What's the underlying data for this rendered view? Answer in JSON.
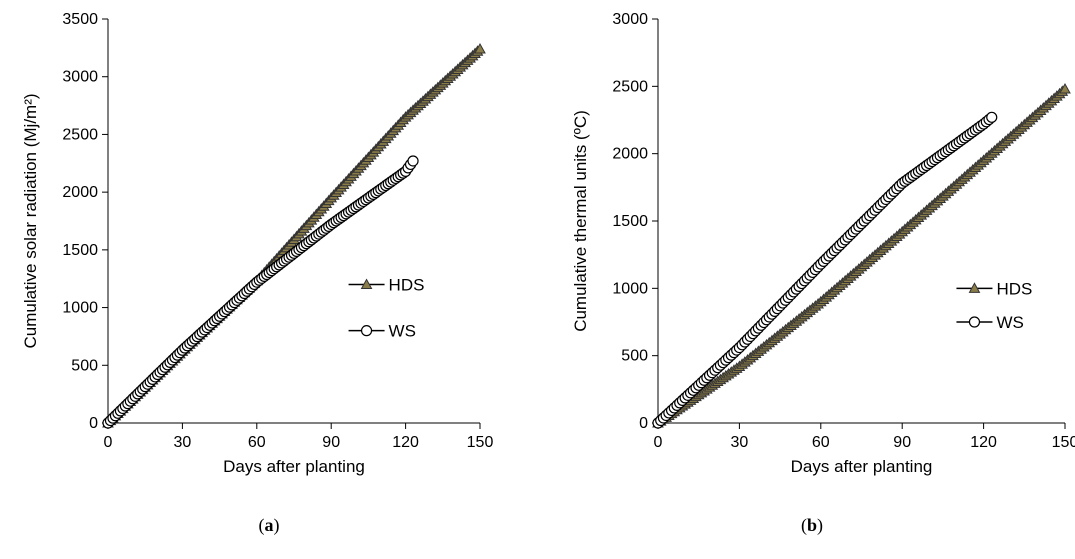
{
  "panels": [
    {
      "caption_open": "(",
      "caption_letter": "a",
      "caption_close": ")"
    },
    {
      "caption_open": "(",
      "caption_letter": "b",
      "caption_close": ")"
    }
  ],
  "chart_data": [
    {
      "type": "line",
      "xlabel": "Days after planting",
      "ylabel": "Cumulative solar radiation (Mj/m²)",
      "xlim": [
        0,
        150
      ],
      "ylim": [
        0,
        3500
      ],
      "xticks": [
        0,
        30,
        60,
        90,
        120,
        150
      ],
      "yticks": [
        0,
        500,
        1000,
        1500,
        2000,
        2500,
        3000,
        3500
      ],
      "grid": false,
      "legend": "center-right",
      "series": [
        {
          "name": "HDS",
          "marker": "triangle",
          "color": "#8b7d4a",
          "x": [
            0,
            30,
            60,
            90,
            120,
            150
          ],
          "y": [
            0,
            620,
            1230,
            1950,
            2650,
            3240
          ]
        },
        {
          "name": "WS",
          "marker": "circle",
          "color": "#ffffff",
          "x": [
            0,
            30,
            60,
            90,
            120,
            123
          ],
          "y": [
            0,
            630,
            1220,
            1720,
            2180,
            2270
          ]
        }
      ]
    },
    {
      "type": "line",
      "xlabel": "Days after planting",
      "ylabel": "Cumulative thermal units (ºC)",
      "xlim": [
        0,
        150
      ],
      "ylim": [
        0,
        3000
      ],
      "xticks": [
        0,
        30,
        60,
        90,
        120,
        150
      ],
      "yticks": [
        0,
        500,
        1000,
        1500,
        2000,
        2500,
        3000
      ],
      "grid": false,
      "legend": "center-right",
      "series": [
        {
          "name": "HDS",
          "marker": "triangle",
          "color": "#8b7d4a",
          "x": [
            0,
            30,
            60,
            90,
            120,
            150
          ],
          "y": [
            0,
            420,
            900,
            1420,
            1950,
            2480
          ]
        },
        {
          "name": "WS",
          "marker": "circle",
          "color": "#ffffff",
          "x": [
            0,
            30,
            60,
            90,
            120,
            123
          ],
          "y": [
            0,
            560,
            1180,
            1780,
            2220,
            2270
          ]
        }
      ]
    }
  ]
}
